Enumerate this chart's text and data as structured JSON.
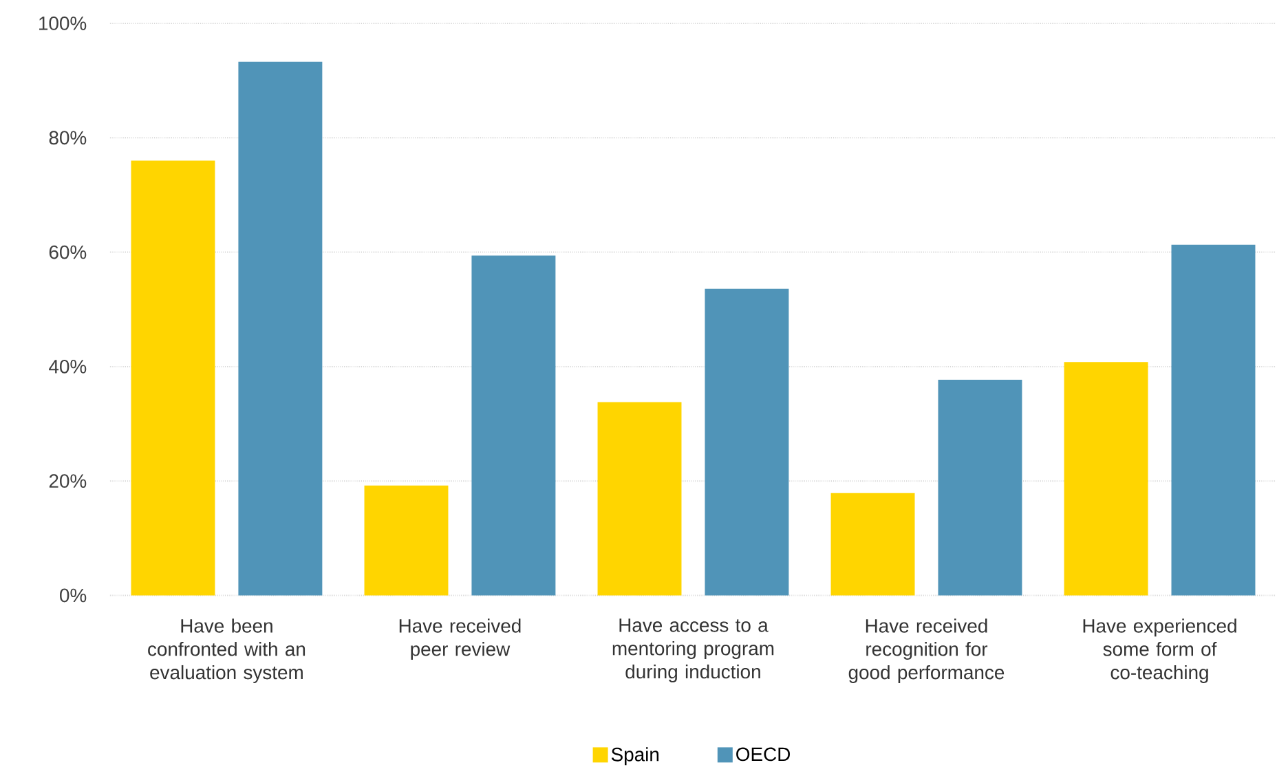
{
  "chart_data": {
    "type": "bar",
    "categories": [
      "Have been confronted with an evaluation system",
      "Have received peer review",
      "Have access to a mentoring program during induction",
      "Have received recognition for good performance",
      "Have experienced some form of co-teaching"
    ],
    "series": [
      {
        "name": "Spain",
        "color": "#ffd500",
        "values": [
          76.0,
          19.2,
          33.8,
          17.9,
          40.8
        ]
      },
      {
        "name": "OECD",
        "color": "#5094b8",
        "values": [
          93.3,
          59.4,
          53.6,
          37.7,
          61.3
        ]
      }
    ],
    "ylim": [
      0,
      100
    ],
    "yticks": [
      {
        "value": 0,
        "label": "0%"
      },
      {
        "value": 20,
        "label": "20%"
      },
      {
        "value": 40,
        "label": "40%"
      },
      {
        "value": 60,
        "label": "60%"
      },
      {
        "value": 80,
        "label": "80%"
      },
      {
        "value": 100,
        "label": "100%"
      }
    ],
    "grid": "y",
    "legend": "bottom"
  }
}
